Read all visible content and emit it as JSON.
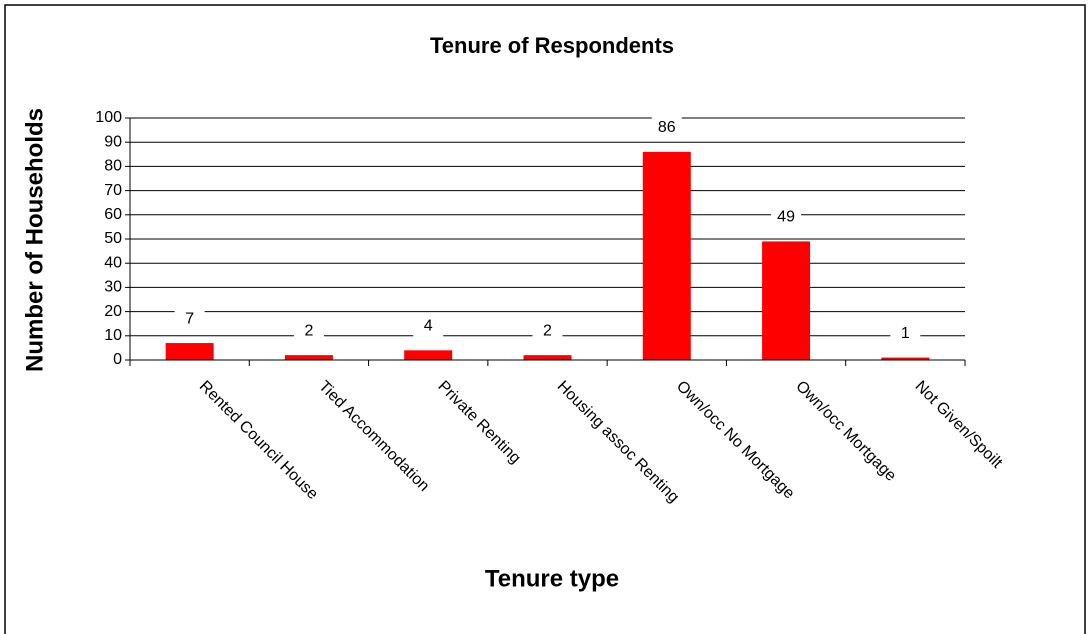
{
  "chart_data": {
    "type": "bar",
    "title": "Tenure of Respondents",
    "x_label": "Tenure type",
    "y_label": "Number of Households",
    "categories": [
      "Rented Council House",
      "Tied Accommodation",
      "Private Renting",
      "Housing assoc Renting",
      "Own/occ No Mortgage",
      "Own/occ Mortgage",
      "Not Given/Spoilt"
    ],
    "values": [
      7,
      2,
      4,
      2,
      86,
      49,
      1
    ],
    "color": "#ff0000",
    "ylim": [
      0,
      100
    ],
    "yticks": [
      0,
      10,
      20,
      30,
      40,
      50,
      60,
      70,
      80,
      90,
      100
    ],
    "grid": true
  }
}
